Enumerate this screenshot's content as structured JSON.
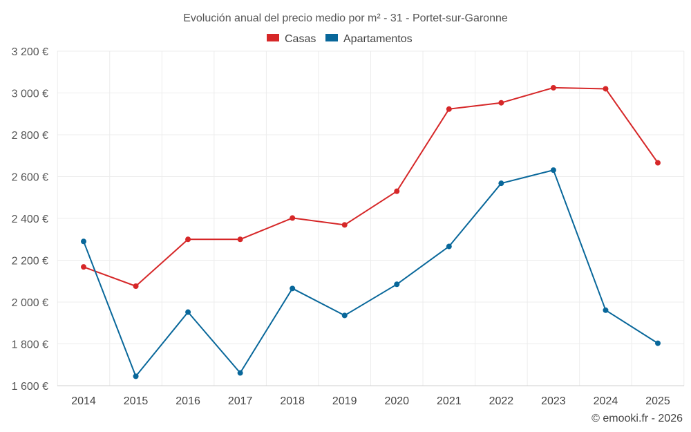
{
  "chart_data": {
    "type": "line",
    "title": "Evolución anual del precio medio por m² - 31 - Portet-sur-Garonne",
    "categories": [
      "2014",
      "2015",
      "2016",
      "2017",
      "2018",
      "2019",
      "2020",
      "2021",
      "2022",
      "2023",
      "2024",
      "2025"
    ],
    "series": [
      {
        "name": "Casas",
        "color": "#d62728",
        "values": [
          2168,
          2076,
          2300,
          2300,
          2402,
          2369,
          2530,
          2923,
          2953,
          3025,
          3020,
          2666
        ]
      },
      {
        "name": "Apartamentos",
        "color": "#08679a",
        "values": [
          2290,
          1645,
          1952,
          1661,
          2065,
          1936,
          2085,
          2266,
          2568,
          2631,
          1961,
          1803
        ]
      }
    ],
    "ylim": [
      1600,
      3200
    ],
    "yticks": [
      1600,
      1800,
      2000,
      2200,
      2400,
      2600,
      2800,
      3000,
      3200
    ],
    "ytick_labels": [
      "1 600 €",
      "1 800 €",
      "2 000 €",
      "2 200 €",
      "2 400 €",
      "2 600 €",
      "2 800 €",
      "3 000 €",
      "3 200 €"
    ],
    "xlabel": "",
    "ylabel": "",
    "grid": true,
    "legend_position": "top-center"
  },
  "credit": "© emooki.fr - 2026"
}
